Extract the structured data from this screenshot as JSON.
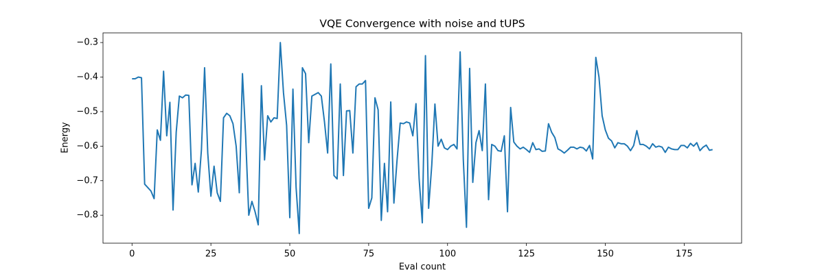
{
  "chart_data": {
    "type": "line",
    "title": "VQE Convergence with noise and tUPS",
    "xlabel": "Eval count",
    "ylabel": "Energy",
    "x": [
      0,
      1,
      2,
      3,
      4,
      5,
      6,
      7,
      8,
      9,
      10,
      11,
      12,
      13,
      14,
      15,
      16,
      17,
      18,
      19,
      20,
      21,
      22,
      23,
      24,
      25,
      26,
      27,
      28,
      29,
      30,
      31,
      32,
      33,
      34,
      35,
      36,
      37,
      38,
      39,
      40,
      41,
      42,
      43,
      44,
      45,
      46,
      47,
      48,
      49,
      50,
      51,
      52,
      53,
      54,
      55,
      56,
      57,
      58,
      59,
      60,
      61,
      62,
      63,
      64,
      65,
      66,
      67,
      68,
      69,
      70,
      71,
      72,
      73,
      74,
      75,
      76,
      77,
      78,
      79,
      80,
      81,
      82,
      83,
      84,
      85,
      86,
      87,
      88,
      89,
      90,
      91,
      92,
      93,
      94,
      95,
      96,
      97,
      98,
      99,
      100,
      101,
      102,
      103,
      104,
      105,
      106,
      107,
      108,
      109,
      110,
      111,
      112,
      113,
      114,
      115,
      116,
      117,
      118,
      119,
      120,
      121,
      122,
      123,
      124,
      125,
      126,
      127,
      128,
      129,
      130,
      131,
      132,
      133,
      134,
      135,
      136,
      137,
      138,
      139,
      140,
      141,
      142,
      143,
      144,
      145,
      146,
      147,
      148,
      149,
      150,
      151,
      152,
      153,
      154,
      155,
      156,
      157,
      158,
      159,
      160,
      161,
      162,
      163,
      164,
      165,
      166,
      167,
      168,
      169,
      170,
      171,
      172,
      173,
      174,
      175,
      176,
      177,
      178,
      179,
      180,
      181,
      182,
      183,
      184
    ],
    "series": [
      {
        "name": "Energy",
        "color": "#1f77b4",
        "values": [
          -0.405,
          -0.405,
          -0.4,
          -0.402,
          -0.71,
          -0.72,
          -0.73,
          -0.752,
          -0.553,
          -0.583,
          -0.383,
          -0.57,
          -0.473,
          -0.785,
          -0.56,
          -0.455,
          -0.46,
          -0.452,
          -0.453,
          -0.712,
          -0.65,
          -0.733,
          -0.61,
          -0.373,
          -0.62,
          -0.745,
          -0.658,
          -0.735,
          -0.76,
          -0.518,
          -0.505,
          -0.512,
          -0.535,
          -0.6,
          -0.735,
          -0.39,
          -0.57,
          -0.8,
          -0.76,
          -0.79,
          -0.828,
          -0.425,
          -0.64,
          -0.512,
          -0.53,
          -0.518,
          -0.52,
          -0.3,
          -0.445,
          -0.54,
          -0.807,
          -0.435,
          -0.72,
          -0.853,
          -0.373,
          -0.39,
          -0.59,
          -0.455,
          -0.45,
          -0.445,
          -0.455,
          -0.53,
          -0.62,
          -0.362,
          -0.685,
          -0.695,
          -0.42,
          -0.685,
          -0.498,
          -0.497,
          -0.62,
          -0.428,
          -0.42,
          -0.42,
          -0.41,
          -0.78,
          -0.75,
          -0.46,
          -0.495,
          -0.815,
          -0.65,
          -0.79,
          -0.472,
          -0.765,
          -0.64,
          -0.533,
          -0.535,
          -0.53,
          -0.533,
          -0.57,
          -0.477,
          -0.695,
          -0.822,
          -0.338,
          -0.78,
          -0.655,
          -0.478,
          -0.6,
          -0.58,
          -0.605,
          -0.61,
          -0.6,
          -0.595,
          -0.608,
          -0.327,
          -0.64,
          -0.835,
          -0.375,
          -0.705,
          -0.59,
          -0.555,
          -0.613,
          -0.42,
          -0.755,
          -0.595,
          -0.6,
          -0.613,
          -0.615,
          -0.57,
          -0.79,
          -0.488,
          -0.588,
          -0.6,
          -0.608,
          -0.603,
          -0.61,
          -0.618,
          -0.59,
          -0.61,
          -0.608,
          -0.615,
          -0.614,
          -0.535,
          -0.56,
          -0.575,
          -0.608,
          -0.613,
          -0.62,
          -0.612,
          -0.603,
          -0.603,
          -0.608,
          -0.603,
          -0.605,
          -0.614,
          -0.598,
          -0.637,
          -0.343,
          -0.4,
          -0.512,
          -0.553,
          -0.577,
          -0.585,
          -0.605,
          -0.59,
          -0.593,
          -0.593,
          -0.6,
          -0.613,
          -0.598,
          -0.555,
          -0.595,
          -0.595,
          -0.6,
          -0.608,
          -0.593,
          -0.603,
          -0.6,
          -0.603,
          -0.618,
          -0.603,
          -0.608,
          -0.61,
          -0.61,
          -0.598,
          -0.598,
          -0.605,
          -0.592,
          -0.6,
          -0.59,
          -0.613,
          -0.603,
          -0.597,
          -0.612,
          -0.61
        ]
      }
    ],
    "xlim": [
      -9.2,
      193.2
    ],
    "xticks": [
      0,
      25,
      50,
      75,
      100,
      125,
      150,
      175
    ],
    "ylim": [
      -0.881,
      -0.272
    ],
    "yticks": [
      {
        "value": -0.8,
        "label": "−0.8"
      },
      {
        "value": -0.7,
        "label": "−0.7"
      },
      {
        "value": -0.6,
        "label": "−0.6"
      },
      {
        "value": -0.5,
        "label": "−0.5"
      },
      {
        "value": -0.4,
        "label": "−0.4"
      },
      {
        "value": -0.3,
        "label": "−0.3"
      }
    ]
  }
}
